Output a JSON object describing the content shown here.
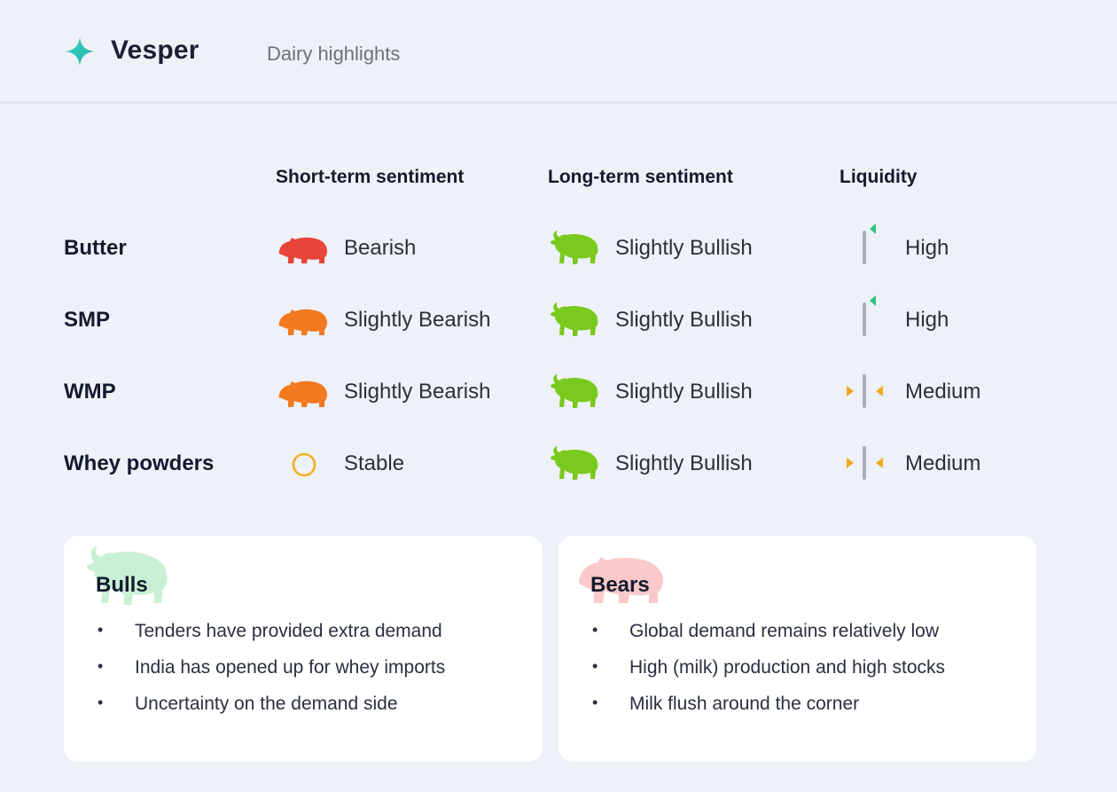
{
  "header": {
    "brand": "Vesper",
    "subtitle": "Dairy highlights"
  },
  "columns": {
    "short_term": "Short-term sentiment",
    "long_term": "Long-term sentiment",
    "liquidity": "Liquidity"
  },
  "rows": [
    {
      "product": "Butter",
      "short": "Bearish",
      "short_icon": "bear-icon",
      "short_color": "#e8443a",
      "long": "Slightly Bullish",
      "long_icon": "bull-icon",
      "long_color": "#79c91e",
      "liquidity": "High",
      "liquidity_icon": "liquidity-high-icon"
    },
    {
      "product": "SMP",
      "short": "Slightly Bearish",
      "short_icon": "bear-icon",
      "short_color": "#f47a1f",
      "long": "Slightly Bullish",
      "long_icon": "bull-icon",
      "long_color": "#79c91e",
      "liquidity": "High",
      "liquidity_icon": "liquidity-high-icon"
    },
    {
      "product": "WMP",
      "short": "Slightly Bearish",
      "short_icon": "bear-icon",
      "short_color": "#f47a1f",
      "long": "Slightly Bullish",
      "long_icon": "bull-icon",
      "long_color": "#79c91e",
      "liquidity": "Medium",
      "liquidity_icon": "liquidity-medium-icon"
    },
    {
      "product": "Whey powders",
      "short": "Stable",
      "short_icon": "circle-icon",
      "short_color": "#f2b01e",
      "long": "Slightly Bullish",
      "long_icon": "bull-icon",
      "long_color": "#79c91e",
      "liquidity": "Medium",
      "liquidity_icon": "liquidity-medium-icon"
    }
  ],
  "bulls": {
    "title": "Bulls",
    "items": [
      "Tenders have provided extra demand",
      "India has opened up for whey imports",
      "Uncertainty on the demand side"
    ]
  },
  "bears": {
    "title": "Bears",
    "items": [
      "Global demand remains relatively low",
      "High (milk) production and high stocks",
      "Milk flush around the corner"
    ]
  },
  "colors": {
    "brand_accent": "#2ec4b6",
    "bull_light": "#c9f0d4",
    "bear_light": "#fbc9c9",
    "liquidity_high": "#2cc47a",
    "liquidity_medium": "#f2a91e"
  }
}
